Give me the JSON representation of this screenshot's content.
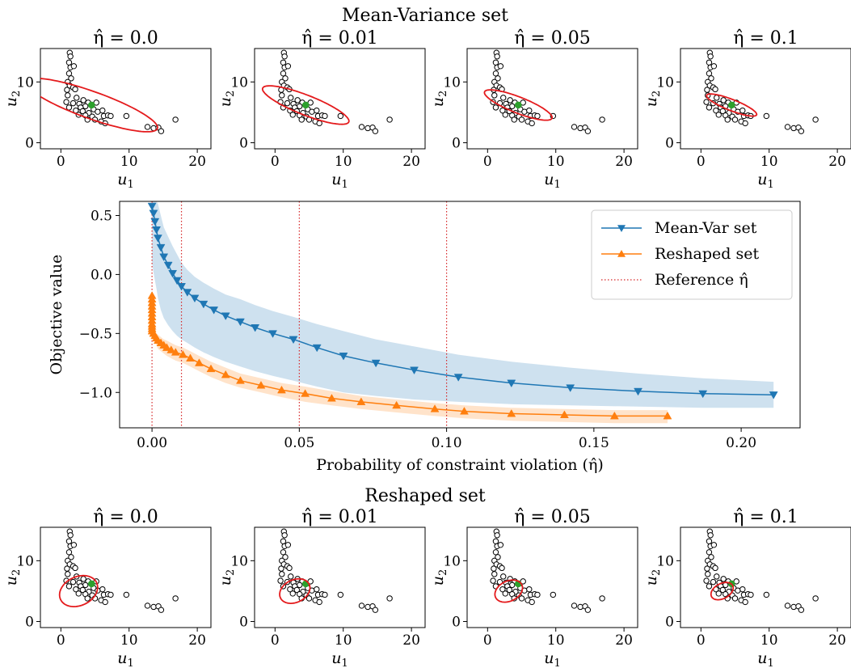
{
  "figure": {
    "top_section_title": "Mean-Variance set",
    "bottom_section_title": "Reshaped set"
  },
  "colors": {
    "mean_var": "#1f77b4",
    "reshaped": "#ff7f0e",
    "reference": "#d62728",
    "ellipse": "#e41a1c",
    "center_point": "#2ca02c",
    "scatter_edge": "#000000"
  },
  "scatter_panels": {
    "xlabel": "u",
    "xlabel_sub": "1",
    "ylabel": "u",
    "ylabel_sub": "2",
    "xlim": [
      -3,
      22
    ],
    "ylim": [
      -1,
      15.5
    ],
    "xticks": [
      0,
      10,
      20
    ],
    "yticks": [
      0,
      10
    ],
    "center": [
      4.5,
      6.2
    ],
    "points": [
      [
        1.3,
        14.8
      ],
      [
        1.4,
        14.2
      ],
      [
        1.2,
        13.2
      ],
      [
        1.4,
        12.4
      ],
      [
        1.2,
        11.4
      ],
      [
        1.5,
        10.6
      ],
      [
        1.0,
        10.0
      ],
      [
        1.3,
        9.4
      ],
      [
        1.8,
        9.1
      ],
      [
        0.9,
        8.7
      ],
      [
        2.1,
        8.8
      ],
      [
        1.0,
        7.8
      ],
      [
        2.3,
        7.4
      ],
      [
        3.3,
        7.0
      ],
      [
        0.8,
        6.7
      ],
      [
        1.8,
        6.5
      ],
      [
        2.7,
        6.4
      ],
      [
        4.0,
        6.6
      ],
      [
        5.2,
        6.6
      ],
      [
        3.6,
        6.0
      ],
      [
        2.9,
        5.8
      ],
      [
        4.8,
        5.5
      ],
      [
        1.2,
        5.8
      ],
      [
        2.2,
        5.3
      ],
      [
        3.2,
        5.2
      ],
      [
        4.1,
        4.9
      ],
      [
        5.4,
        5.1
      ],
      [
        6.1,
        5.3
      ],
      [
        2.6,
        4.6
      ],
      [
        3.6,
        4.5
      ],
      [
        4.6,
        4.3
      ],
      [
        6.3,
        4.4
      ],
      [
        5.0,
        3.8
      ],
      [
        5.9,
        3.5
      ],
      [
        3.9,
        3.8
      ],
      [
        6.9,
        4.5
      ],
      [
        7.3,
        4.4
      ],
      [
        6.5,
        3.2
      ],
      [
        9.6,
        4.4
      ],
      [
        12.7,
        2.6
      ],
      [
        13.6,
        2.4
      ],
      [
        14.3,
        2.5
      ],
      [
        14.7,
        1.9
      ],
      [
        16.8,
        3.8
      ],
      [
        1.9,
        12.6
      ]
    ],
    "top_panels": [
      {
        "title": "η̂ = 0.0",
        "ellipse": {
          "cx": 4.5,
          "cy": 6.2,
          "a": 10.4,
          "b": 2.2,
          "angle_deg": -22
        }
      },
      {
        "title": "η̂ = 0.01",
        "ellipse": {
          "cx": 4.5,
          "cy": 6.2,
          "a": 6.9,
          "b": 1.6,
          "angle_deg": -24
        }
      },
      {
        "title": "η̂ = 0.05",
        "ellipse": {
          "cx": 4.5,
          "cy": 6.2,
          "a": 5.4,
          "b": 1.3,
          "angle_deg": -24
        }
      },
      {
        "title": "η̂ = 0.1",
        "ellipse": {
          "cx": 4.5,
          "cy": 6.2,
          "a": 4.0,
          "b": 0.9,
          "angle_deg": -24
        }
      }
    ],
    "bottom_panels": [
      {
        "title": "η̂ = 0.0",
        "ellipse": {
          "cx": 2.6,
          "cy": 5.0,
          "a": 3.0,
          "b": 2.3,
          "angle_deg": 35
        }
      },
      {
        "title": "η̂ = 0.01",
        "ellipse": {
          "cx": 2.9,
          "cy": 5.0,
          "a": 2.4,
          "b": 1.8,
          "angle_deg": 35
        }
      },
      {
        "title": "η̂ = 0.05",
        "ellipse": {
          "cx": 3.1,
          "cy": 5.0,
          "a": 2.2,
          "b": 1.6,
          "angle_deg": 35
        }
      },
      {
        "title": "η̂ = 0.1",
        "ellipse": {
          "cx": 3.1,
          "cy": 5.0,
          "a": 1.8,
          "b": 1.2,
          "angle_deg": 35
        }
      }
    ]
  },
  "chart_data": {
    "type": "line",
    "title": "",
    "xlabel": "Probability of constraint violation (η̂)",
    "ylabel": "Objective value",
    "xlim": [
      -0.011,
      0.22
    ],
    "ylim": [
      -1.3,
      0.62
    ],
    "xticks": [
      0.0,
      0.05,
      0.1,
      0.15,
      0.2
    ],
    "xtick_labels": [
      "0.00",
      "0.05",
      "0.10",
      "0.15",
      "0.20"
    ],
    "yticks": [
      0.5,
      0.0,
      -0.5,
      -1.0
    ],
    "ytick_labels": [
      "0.5",
      "0.0",
      "−0.5",
      "−1.0"
    ],
    "legend_position": "top-right",
    "reference_lines": {
      "name": "Reference η̂",
      "x": [
        0.0,
        0.01,
        0.05,
        0.1
      ]
    },
    "series": [
      {
        "name": "Mean-Var set",
        "marker": "triangle-down",
        "x": [
          0.0,
          0.0005,
          0.001,
          0.0015,
          0.002,
          0.003,
          0.004,
          0.0055,
          0.007,
          0.0085,
          0.01,
          0.012,
          0.0145,
          0.0175,
          0.021,
          0.025,
          0.03,
          0.035,
          0.041,
          0.048,
          0.056,
          0.065,
          0.076,
          0.089,
          0.104,
          0.122,
          0.142,
          0.165,
          0.187,
          0.211
        ],
        "y": [
          0.58,
          0.52,
          0.45,
          0.38,
          0.31,
          0.23,
          0.15,
          0.08,
          0.01,
          -0.05,
          -0.1,
          -0.15,
          -0.2,
          -0.25,
          -0.3,
          -0.35,
          -0.4,
          -0.45,
          -0.5,
          -0.55,
          -0.62,
          -0.69,
          -0.75,
          -0.81,
          -0.87,
          -0.92,
          -0.96,
          -0.99,
          -1.01,
          -1.02
        ],
        "band_upper": [
          0.62,
          0.62,
          0.62,
          0.62,
          0.6,
          0.5,
          0.4,
          0.32,
          0.24,
          0.17,
          0.1,
          0.04,
          -0.02,
          -0.07,
          -0.12,
          -0.17,
          -0.21,
          -0.26,
          -0.31,
          -0.36,
          -0.42,
          -0.48,
          -0.55,
          -0.61,
          -0.68,
          -0.74,
          -0.79,
          -0.84,
          -0.88,
          -0.91
        ],
        "band_lower": [
          0.1,
          0.02,
          -0.05,
          -0.12,
          -0.2,
          -0.3,
          -0.37,
          -0.43,
          -0.48,
          -0.52,
          -0.55,
          -0.58,
          -0.62,
          -0.66,
          -0.7,
          -0.74,
          -0.78,
          -0.82,
          -0.86,
          -0.9,
          -0.95,
          -1.0,
          -1.03,
          -1.06,
          -1.08,
          -1.1,
          -1.11,
          -1.12,
          -1.13,
          -1.13
        ]
      },
      {
        "name": "Reshaped set",
        "marker": "triangle-up",
        "x": [
          0.0,
          0.0,
          0.0,
          0.0,
          0.0,
          0.0,
          0.0,
          0.0,
          0.0,
          0.0,
          0.0,
          0.0,
          0.0005,
          0.001,
          0.0015,
          0.002,
          0.003,
          0.004,
          0.005,
          0.0065,
          0.008,
          0.0105,
          0.013,
          0.016,
          0.02,
          0.025,
          0.03,
          0.037,
          0.044,
          0.052,
          0.061,
          0.071,
          0.083,
          0.096,
          0.106,
          0.122,
          0.14,
          0.157,
          0.175
        ],
        "y": [
          -0.18,
          -0.21,
          -0.24,
          -0.27,
          -0.3,
          -0.33,
          -0.36,
          -0.39,
          -0.42,
          -0.44,
          -0.46,
          -0.48,
          -0.5,
          -0.52,
          -0.54,
          -0.56,
          -0.58,
          -0.6,
          -0.62,
          -0.64,
          -0.66,
          -0.68,
          -0.71,
          -0.75,
          -0.8,
          -0.85,
          -0.9,
          -0.94,
          -0.98,
          -1.01,
          -1.05,
          -1.08,
          -1.11,
          -1.14,
          -1.16,
          -1.18,
          -1.19,
          -1.2,
          -1.2
        ],
        "band_upper": [
          -0.15,
          -0.18,
          -0.21,
          -0.24,
          -0.27,
          -0.3,
          -0.33,
          -0.36,
          -0.39,
          -0.41,
          -0.43,
          -0.45,
          -0.47,
          -0.48,
          -0.5,
          -0.51,
          -0.53,
          -0.55,
          -0.56,
          -0.58,
          -0.6,
          -0.62,
          -0.65,
          -0.69,
          -0.74,
          -0.79,
          -0.84,
          -0.88,
          -0.92,
          -0.95,
          -0.99,
          -1.03,
          -1.06,
          -1.09,
          -1.11,
          -1.13,
          -1.14,
          -1.15,
          -1.15
        ],
        "band_lower": [
          -0.22,
          -0.25,
          -0.28,
          -0.31,
          -0.34,
          -0.37,
          -0.4,
          -0.43,
          -0.46,
          -0.48,
          -0.5,
          -0.52,
          -0.54,
          -0.57,
          -0.6,
          -0.63,
          -0.65,
          -0.67,
          -0.69,
          -0.71,
          -0.73,
          -0.75,
          -0.78,
          -0.82,
          -0.87,
          -0.92,
          -0.96,
          -1.0,
          -1.04,
          -1.08,
          -1.11,
          -1.14,
          -1.17,
          -1.2,
          -1.22,
          -1.24,
          -1.25,
          -1.26,
          -1.26
        ]
      }
    ]
  }
}
